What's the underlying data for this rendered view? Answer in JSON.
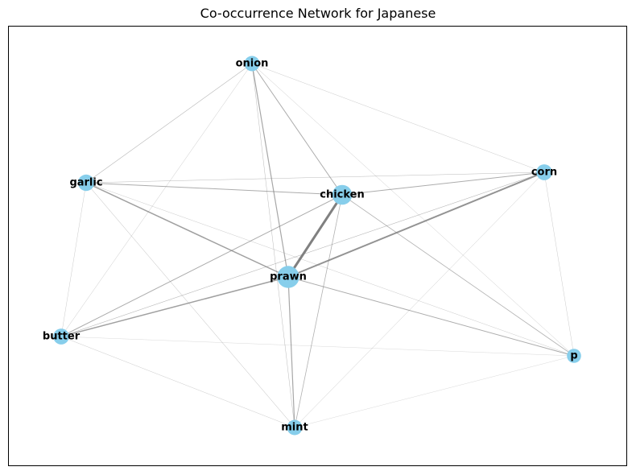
{
  "title": "Co-occurrence Network for Japanese",
  "colors": {
    "node": "#87ceeb",
    "edge": "#808080",
    "frame": "#000000"
  },
  "nodes": [
    {
      "id": "onion",
      "label": "onion",
      "weight": 1
    },
    {
      "id": "garlic",
      "label": "garlic",
      "weight": 1.2
    },
    {
      "id": "chicken",
      "label": "chicken",
      "weight": 1.8
    },
    {
      "id": "corn",
      "label": "corn",
      "weight": 1.1
    },
    {
      "id": "prawn",
      "label": "prawn",
      "weight": 2.2
    },
    {
      "id": "butter",
      "label": "butter",
      "weight": 1.1
    },
    {
      "id": "p",
      "label": "p",
      "weight": 0.8
    },
    {
      "id": "mint",
      "label": "mint",
      "weight": 1.0
    }
  ],
  "edges": [
    {
      "source": "chicken",
      "target": "prawn",
      "weight": 3
    },
    {
      "source": "prawn",
      "target": "corn",
      "weight": 2
    },
    {
      "source": "garlic",
      "target": "prawn",
      "weight": 1.5
    },
    {
      "source": "butter",
      "target": "prawn",
      "weight": 1.5
    },
    {
      "source": "onion",
      "target": "chicken",
      "weight": 1
    },
    {
      "source": "onion",
      "target": "prawn",
      "weight": 1.2
    },
    {
      "source": "garlic",
      "target": "chicken",
      "weight": 1
    },
    {
      "source": "chicken",
      "target": "corn",
      "weight": 1
    },
    {
      "source": "chicken",
      "target": "butter",
      "weight": 1
    },
    {
      "source": "chicken",
      "target": "p",
      "weight": 0.8
    },
    {
      "source": "chicken",
      "target": "mint",
      "weight": 0.8
    },
    {
      "source": "prawn",
      "target": "mint",
      "weight": 1.2
    },
    {
      "source": "prawn",
      "target": "p",
      "weight": 1
    },
    {
      "source": "butter",
      "target": "corn",
      "weight": 0.6
    },
    {
      "source": "onion",
      "target": "garlic",
      "weight": 0.6
    },
    {
      "source": "onion",
      "target": "corn",
      "weight": 0.4
    },
    {
      "source": "onion",
      "target": "butter",
      "weight": 0.4
    },
    {
      "source": "onion",
      "target": "mint",
      "weight": 0.5
    },
    {
      "source": "onion",
      "target": "p",
      "weight": 0.4
    },
    {
      "source": "garlic",
      "target": "corn",
      "weight": 0.5
    },
    {
      "source": "garlic",
      "target": "butter",
      "weight": 0.4
    },
    {
      "source": "garlic",
      "target": "mint",
      "weight": 0.5
    },
    {
      "source": "garlic",
      "target": "p",
      "weight": 0.4
    },
    {
      "source": "corn",
      "target": "mint",
      "weight": 0.4
    },
    {
      "source": "corn",
      "target": "p",
      "weight": 0.4
    },
    {
      "source": "butter",
      "target": "mint",
      "weight": 0.4
    },
    {
      "source": "butter",
      "target": "p",
      "weight": 0.3
    },
    {
      "source": "mint",
      "target": "p",
      "weight": 0.3
    }
  ]
}
